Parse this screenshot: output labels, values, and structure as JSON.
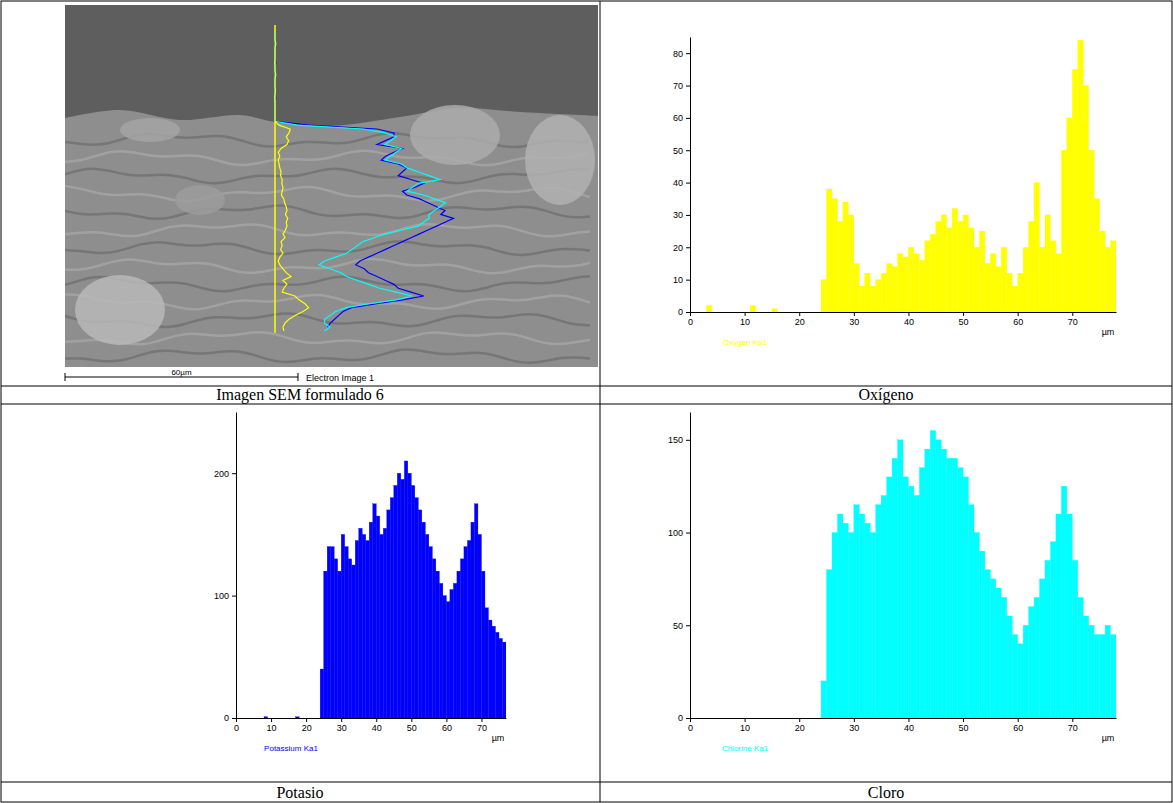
{
  "sem_image": {
    "title": "Imagen SEM formulado 6",
    "image_label": "Electron Image 1",
    "scale_bar": {
      "value": 60,
      "label": "60µm"
    }
  },
  "chart_data": [
    {
      "type": "histogram",
      "title": "Oxígeno",
      "xlabel": "µm",
      "bins": [
        0,
        1,
        2,
        3,
        4,
        5,
        6,
        7,
        8,
        9,
        10,
        11,
        12,
        13,
        14,
        15,
        16,
        17,
        18,
        19,
        20,
        21,
        22,
        23,
        24,
        25,
        26,
        27,
        28,
        29,
        30,
        31,
        32,
        33,
        34,
        35,
        36,
        37,
        38,
        39,
        40,
        41,
        42,
        43,
        44,
        45,
        46,
        47,
        48,
        49,
        50,
        51,
        52,
        53,
        54,
        55,
        56,
        57,
        58,
        59,
        60,
        61,
        62,
        63,
        64,
        65,
        66,
        67,
        68,
        69,
        70,
        71,
        72,
        73,
        74,
        75,
        76,
        77,
        78
      ],
      "series": [
        {
          "name": "Oxygen Ka1",
          "color": "#ffff00",
          "values": [
            0,
            0,
            0,
            2,
            0,
            0,
            0,
            0,
            0,
            0,
            0,
            2,
            0,
            0,
            0,
            1,
            0,
            0,
            0,
            0,
            0,
            0,
            0,
            0,
            10,
            38,
            35,
            28,
            34,
            30,
            15,
            8,
            12,
            8,
            10,
            12,
            15,
            14,
            18,
            17,
            20,
            18,
            16,
            22,
            24,
            28,
            30,
            26,
            32,
            28,
            30,
            26,
            20,
            25,
            15,
            18,
            14,
            20,
            12,
            8,
            12,
            20,
            28,
            40,
            20,
            30,
            22,
            18,
            50,
            60,
            75,
            84,
            70,
            50,
            35,
            25,
            20,
            22
          ]
        }
      ],
      "xlim": [
        0,
        78
      ],
      "xticks": [
        0,
        10,
        20,
        30,
        40,
        50,
        60,
        70
      ],
      "ylim": [
        0,
        85
      ],
      "yticks": [
        0,
        10,
        20,
        30,
        40,
        50,
        60,
        70,
        80
      ]
    },
    {
      "type": "histogram",
      "title": "Potasio",
      "xlabel": "µm",
      "bins": [
        0,
        1,
        2,
        3,
        4,
        5,
        6,
        7,
        8,
        9,
        10,
        11,
        12,
        13,
        14,
        15,
        16,
        17,
        18,
        19,
        20,
        21,
        22,
        23,
        24,
        25,
        26,
        27,
        28,
        29,
        30,
        31,
        32,
        33,
        34,
        35,
        36,
        37,
        38,
        39,
        40,
        41,
        42,
        43,
        44,
        45,
        46,
        47,
        48,
        49,
        50,
        51,
        52,
        53,
        54,
        55,
        56,
        57,
        58,
        59,
        60,
        61,
        62,
        63,
        64,
        65,
        66,
        67,
        68,
        69,
        70,
        71,
        72,
        73,
        74,
        75,
        76,
        77
      ],
      "series": [
        {
          "name": "Potassium Ka1",
          "color": "#0000ff",
          "values": [
            0,
            0,
            0,
            0,
            0,
            0,
            0,
            0,
            1,
            0,
            0,
            0,
            0,
            0,
            0,
            0,
            0,
            1,
            0,
            0,
            0,
            0,
            0,
            0,
            40,
            120,
            140,
            140,
            130,
            120,
            150,
            140,
            130,
            125,
            145,
            155,
            150,
            145,
            160,
            175,
            165,
            150,
            155,
            170,
            180,
            190,
            200,
            195,
            210,
            200,
            190,
            180,
            170,
            160,
            150,
            140,
            130,
            120,
            110,
            100,
            95,
            105,
            110,
            120,
            130,
            140,
            145,
            160,
            175,
            150,
            120,
            90,
            80,
            75,
            70,
            65,
            62
          ]
        }
      ],
      "xlim": [
        0,
        77
      ],
      "xticks": [
        0,
        10,
        20,
        30,
        40,
        50,
        60,
        70
      ],
      "ylim": [
        0,
        250
      ],
      "yticks": [
        0,
        100,
        200
      ]
    },
    {
      "type": "histogram",
      "title": "Cloro",
      "xlabel": "µm",
      "bins": [
        0,
        1,
        2,
        3,
        4,
        5,
        6,
        7,
        8,
        9,
        10,
        11,
        12,
        13,
        14,
        15,
        16,
        17,
        18,
        19,
        20,
        21,
        22,
        23,
        24,
        25,
        26,
        27,
        28,
        29,
        30,
        31,
        32,
        33,
        34,
        35,
        36,
        37,
        38,
        39,
        40,
        41,
        42,
        43,
        44,
        45,
        46,
        47,
        48,
        49,
        50,
        51,
        52,
        53,
        54,
        55,
        56,
        57,
        58,
        59,
        60,
        61,
        62,
        63,
        64,
        65,
        66,
        67,
        68,
        69,
        70,
        71,
        72,
        73,
        74,
        75,
        76,
        77,
        78
      ],
      "series": [
        {
          "name": "Chlorine Ka1",
          "color": "#00ffff",
          "values": [
            0,
            0,
            0,
            0,
            0,
            0,
            0,
            0,
            0,
            0,
            0,
            0,
            0,
            0,
            0,
            0,
            0,
            0,
            0,
            0,
            0,
            0,
            0,
            0,
            20,
            80,
            100,
            110,
            105,
            100,
            115,
            110,
            105,
            100,
            115,
            120,
            130,
            140,
            150,
            130,
            125,
            120,
            135,
            145,
            155,
            150,
            145,
            140,
            140,
            135,
            130,
            115,
            100,
            90,
            80,
            75,
            70,
            65,
            55,
            45,
            40,
            50,
            60,
            65,
            75,
            85,
            95,
            110,
            125,
            110,
            85,
            65,
            55,
            50,
            45,
            45,
            50,
            45
          ]
        }
      ],
      "xlim": [
        0,
        78
      ],
      "xticks": [
        0,
        10,
        20,
        30,
        40,
        50,
        60,
        70
      ],
      "ylim": [
        0,
        165
      ],
      "yticks": [
        0,
        50,
        100,
        150
      ]
    }
  ]
}
